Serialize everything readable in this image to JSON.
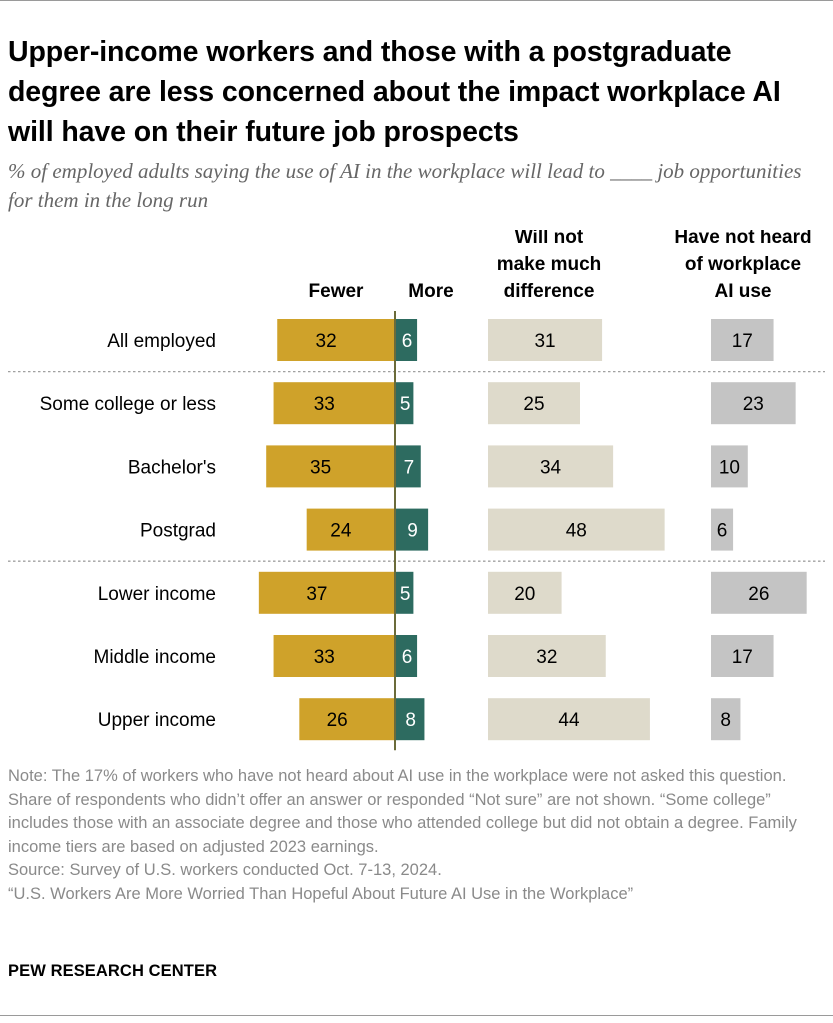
{
  "title": "Upper-income workers and those with a postgraduate degree are less concerned about the impact workplace AI will have on their future job prospects",
  "subtitle": "% of employed adults saying the use of AI in the workplace will lead to ____ job opportunities for them in the long run",
  "chart_data": {
    "type": "bar",
    "title": "Upper-income workers and those with a postgraduate degree are less concerned about the impact workplace AI will have on their future job prospects",
    "categories": [
      "All employed",
      "Some college or less",
      "Bachelor's",
      "Postgrad",
      "Lower income",
      "Middle income",
      "Upper income"
    ],
    "group_separators_after": [
      "All employed",
      "Postgrad"
    ],
    "series": [
      {
        "name": "Fewer",
        "header_lines": [
          "Fewer"
        ],
        "color": "#cfa22a",
        "values": [
          32,
          33,
          35,
          24,
          37,
          33,
          26
        ]
      },
      {
        "name": "More",
        "header_lines": [
          "More"
        ],
        "color": "#2d6b60",
        "values": [
          6,
          5,
          7,
          9,
          5,
          6,
          8
        ]
      },
      {
        "name": "Will not make much difference",
        "header_lines": [
          "Will not",
          "make much",
          "difference"
        ],
        "color": "#dedacb",
        "values": [
          31,
          25,
          34,
          48,
          20,
          32,
          44
        ]
      },
      {
        "name": "Have not heard of workplace AI use",
        "header_lines": [
          "Have not heard",
          "of workplace",
          "AI use"
        ],
        "color": "#c4c4c4",
        "values": [
          17,
          23,
          10,
          6,
          26,
          17,
          8
        ]
      }
    ],
    "xlabel": "",
    "ylabel": "",
    "unit": "%"
  },
  "notes": {
    "note": "Note: The 17% of workers who have not heard about AI use in the workplace were not asked this question. Share of respondents who didn’t offer an answer or responded “Not sure” are not shown. “Some college” includes those with an associate degree and those who attended college but did not obtain a degree. Family income tiers are based on adjusted 2023 earnings.",
    "source": "Source: Survey of U.S. workers conducted Oct. 7-13, 2024.",
    "report": "“U.S. Workers Are More Worried Than Hopeful About Future AI Use in the Workplace”"
  },
  "logo": "PEW RESEARCH CENTER",
  "colors": {
    "fewer": "#cfa22a",
    "more": "#2d6b60",
    "no_difference": "#dedacb",
    "not_heard": "#c4c4c4",
    "center_line": "#6b6b3a",
    "separator": "#a0a0a0"
  }
}
